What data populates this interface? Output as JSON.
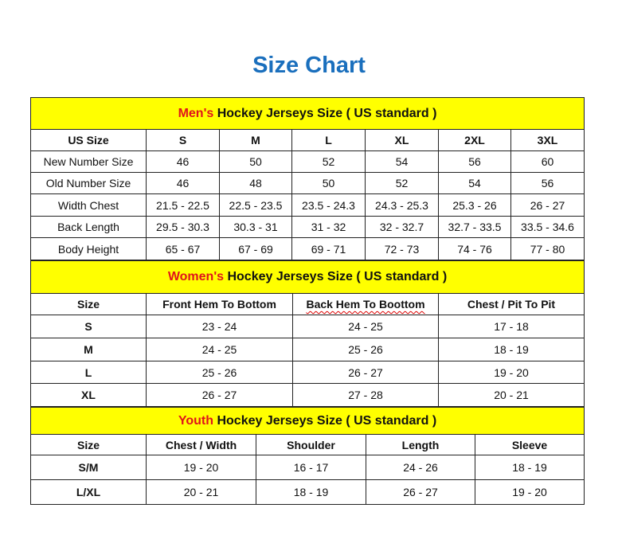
{
  "title": "Size Chart",
  "colors": {
    "title": "#1a6fbd",
    "banner": "#ffff00",
    "accent": "#e0141c"
  },
  "men": {
    "banner_accent": "Men's",
    "banner_rest": " Hockey Jerseys Size ( US standard )",
    "headers": [
      "US Size",
      "S",
      "M",
      "L",
      "XL",
      "2XL",
      "3XL"
    ],
    "rows": [
      [
        "New Number Size",
        "46",
        "50",
        "52",
        "54",
        "56",
        "60"
      ],
      [
        "Old Number Size",
        "46",
        "48",
        "50",
        "52",
        "54",
        "56"
      ],
      [
        "Width Chest",
        "21.5 - 22.5",
        "22.5 - 23.5",
        "23.5 - 24.3",
        "24.3 - 25.3",
        "25.3 - 26",
        "26 - 27"
      ],
      [
        "Back Length",
        "29.5 - 30.3",
        "30.3 - 31",
        "31 - 32",
        "32 - 32.7",
        "32.7 - 33.5",
        "33.5 - 34.6"
      ],
      [
        "Body Height",
        "65 - 67",
        "67 - 69",
        "69 - 71",
        "72 - 73",
        "74 - 76",
        "77 - 80"
      ]
    ]
  },
  "women": {
    "banner_accent": "Women's",
    "banner_rest": " Hockey Jerseys Size ( US standard )",
    "headers": [
      "Size",
      "Front Hem To Bottom",
      "Back Hem To Boottom",
      "Chest / Pit To Pit"
    ],
    "rows": [
      [
        "S",
        "23 - 24",
        "24 - 25",
        "17 - 18"
      ],
      [
        "M",
        "24 - 25",
        "25 - 26",
        "18 - 19"
      ],
      [
        "L",
        "25 - 26",
        "26 - 27",
        "19 - 20"
      ],
      [
        "XL",
        "26 - 27",
        "27 - 28",
        "20 - 21"
      ]
    ]
  },
  "youth": {
    "banner_accent": "Youth",
    "banner_rest": " Hockey Jerseys Size ( US standard )",
    "headers": [
      "Size",
      "Chest / Width",
      "Shoulder",
      "Length",
      "Sleeve"
    ],
    "rows": [
      [
        "S/M",
        "19 - 20",
        "16 - 17",
        "24 - 26",
        "18 - 19"
      ],
      [
        "L/XL",
        "20 - 21",
        "18 - 19",
        "26 - 27",
        "19 - 20"
      ]
    ]
  }
}
